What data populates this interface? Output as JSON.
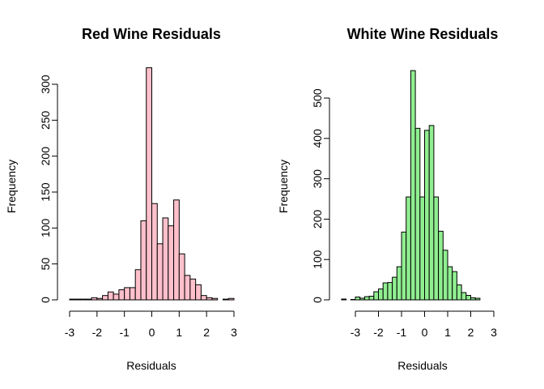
{
  "chart_data": [
    {
      "type": "bar",
      "title": "Red Wine Residuals",
      "xlabel": "Residuals",
      "ylabel": "Frequency",
      "fill_color": "#FFC0CB",
      "bin_width": 0.2,
      "bin_start": -3.0,
      "values": [
        1,
        1,
        1,
        1,
        3,
        2,
        6,
        11,
        8,
        14,
        17,
        17,
        42,
        110,
        323,
        134,
        78,
        114,
        103,
        139,
        64,
        34,
        29,
        21,
        6,
        3,
        2,
        0,
        1,
        2
      ],
      "xlim": [
        -3,
        3
      ],
      "ylim": [
        0,
        323
      ],
      "xticks": [
        "-3",
        "-2",
        "-1",
        "0",
        "1",
        "2",
        "3"
      ],
      "yticks": [
        "0",
        "50",
        "100",
        "150",
        "200",
        "250",
        "300"
      ],
      "grid": false
    },
    {
      "type": "bar",
      "title": "White Wine Residuals",
      "xlabel": "Residuals",
      "ylabel": "Frequency",
      "fill_color": "#90EE90",
      "bin_width": 0.2,
      "bin_start": -3.6,
      "values": [
        2,
        0,
        1,
        7,
        4,
        8,
        9,
        20,
        27,
        42,
        43,
        56,
        82,
        168,
        255,
        568,
        425,
        255,
        420,
        432,
        255,
        170,
        123,
        82,
        70,
        37,
        18,
        11,
        5,
        4,
        0
      ],
      "xlim": [
        -3.6,
        3.2
      ],
      "ylim": [
        0,
        568
      ],
      "xticks": [
        "-3",
        "-2",
        "-1",
        "0",
        "1",
        "2",
        "3"
      ],
      "yticks": [
        "0",
        "100",
        "200",
        "300",
        "400",
        "500"
      ],
      "grid": false
    }
  ]
}
